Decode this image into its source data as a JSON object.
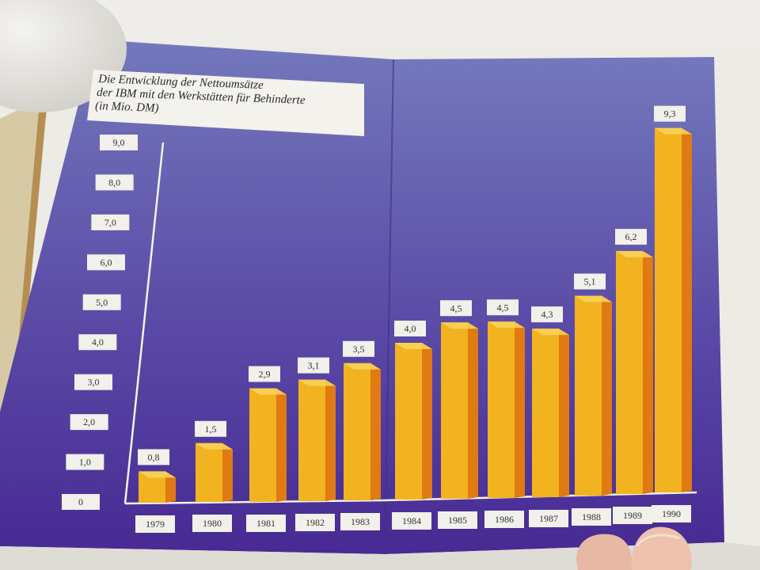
{
  "chart_data": {
    "type": "bar",
    "title": "Die Entwicklung der Nettoumsätze der IBM mit den Werkstätten für Behinderte (in Mio. DM)",
    "title_lines": [
      "Die Entwicklung der Nettoumsätze",
      "der IBM mit den Werkstätten für Behinderte",
      "(in Mio. DM)"
    ],
    "categories": [
      "1979",
      "1980",
      "1981",
      "1982",
      "1983",
      "1984",
      "1985",
      "1986",
      "1987",
      "1988",
      "1989",
      "1990"
    ],
    "values": [
      0.8,
      1.5,
      2.9,
      3.1,
      3.5,
      4.0,
      4.5,
      4.5,
      4.3,
      5.1,
      6.2,
      9.3
    ],
    "value_labels": [
      "0,8",
      "1,5",
      "2,9",
      "3,1",
      "3,5",
      "4,0",
      "4,5",
      "4,5",
      "4,3",
      "5,1",
      "6,2",
      "9,3"
    ],
    "y_ticks": [
      0,
      1,
      2,
      3,
      4,
      5,
      6,
      7,
      8,
      9
    ],
    "y_tick_labels": [
      "0",
      "1,0",
      "2,0",
      "3,0",
      "4,0",
      "5,0",
      "6,0",
      "7,0",
      "8,0",
      "9,0"
    ],
    "ylim": [
      0,
      9.3
    ],
    "xlabel": "",
    "ylabel": "",
    "grid": false,
    "legend": "none",
    "colors": {
      "bar_front": "#f2b320",
      "bar_side": "#e07a12",
      "bar_top": "#f9d45a",
      "background_top": "#6d73b6",
      "background_bottom": "#4a2f95",
      "label_box": "#f1f0ea"
    }
  }
}
